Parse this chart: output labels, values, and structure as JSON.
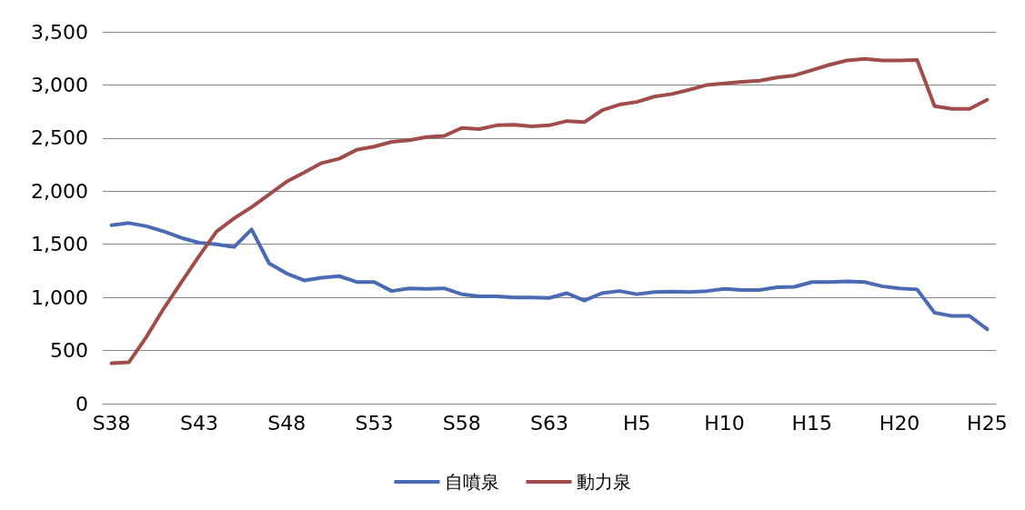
{
  "chart_data": {
    "type": "line",
    "categories": [
      "S38",
      null,
      null,
      null,
      null,
      "S43",
      null,
      null,
      null,
      null,
      "S48",
      null,
      null,
      null,
      null,
      "S53",
      null,
      null,
      null,
      null,
      "S58",
      null,
      null,
      null,
      null,
      "S63",
      null,
      null,
      null,
      null,
      "H5",
      null,
      null,
      null,
      null,
      "H10",
      null,
      null,
      null,
      null,
      "H15",
      null,
      null,
      null,
      null,
      "H20",
      null,
      null,
      null,
      null,
      "H25"
    ],
    "series": [
      {
        "name": "自噴泉",
        "color": "#4a6ab4",
        "values": [
          1680,
          1700,
          1670,
          1620,
          1560,
          1515,
          1500,
          1475,
          1640,
          1320,
          1225,
          1160,
          1185,
          1200,
          1145,
          1145,
          1060,
          1085,
          1080,
          1085,
          1030,
          1010,
          1010,
          1000,
          1000,
          995,
          1040,
          970,
          1040,
          1060,
          1030,
          1050,
          1055,
          1050,
          1060,
          1080,
          1070,
          1070,
          1095,
          1100,
          1145,
          1145,
          1150,
          1145,
          1105,
          1085,
          1075,
          855,
          825,
          825,
          700
        ]
      },
      {
        "name": "動力泉",
        "color": "#a04c4a",
        "values": [
          380,
          390,
          630,
          900,
          1145,
          1390,
          1620,
          1745,
          1850,
          1970,
          2090,
          2175,
          2265,
          2305,
          2390,
          2420,
          2465,
          2480,
          2510,
          2520,
          2595,
          2585,
          2620,
          2625,
          2610,
          2620,
          2660,
          2650,
          2760,
          2815,
          2840,
          2890,
          2915,
          2955,
          3000,
          3015,
          3030,
          3040,
          3070,
          3090,
          3140,
          3190,
          3230,
          3245,
          3230,
          3230,
          3235,
          2800,
          2775,
          2775,
          2860
        ]
      }
    ],
    "ylim": [
      0,
      3500
    ],
    "yticks": [
      0,
      500,
      {
        "value": 1000,
        "label": "1,000"
      },
      {
        "value": 1500,
        "label": "1,500"
      },
      {
        "value": 2000,
        "label": "2,000"
      },
      {
        "value": 2500,
        "label": "2,500"
      },
      {
        "value": 3000,
        "label": "3,000"
      },
      {
        "value": 3500,
        "label": "3,500"
      }
    ],
    "grid": "y",
    "legend": "bottom",
    "marker": "none",
    "line_style": "solid"
  }
}
